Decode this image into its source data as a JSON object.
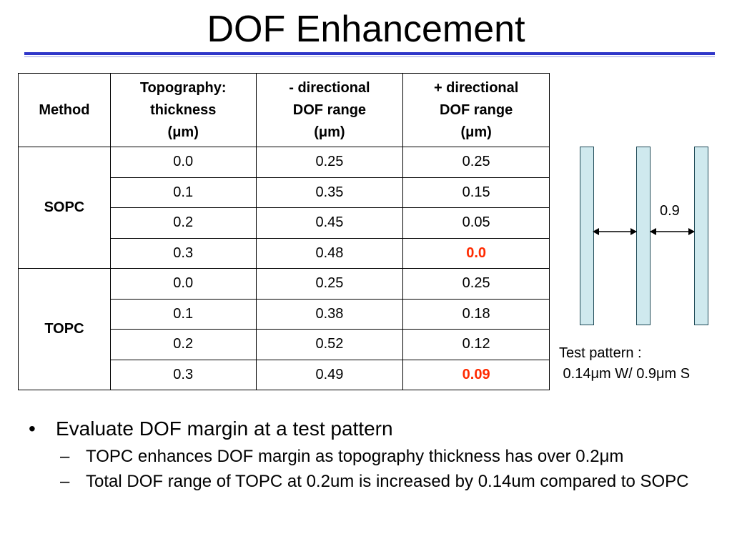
{
  "title": "DOF Enhancement",
  "table": {
    "headers": {
      "method": "Method",
      "thickness": [
        "Topography:",
        "thickness",
        "(μm)"
      ],
      "minus": [
        "- directional",
        "DOF range",
        "(μm)"
      ],
      "plus": [
        "+ directional",
        "DOF range",
        "(μm)"
      ]
    },
    "groups": [
      {
        "method": "SOPC",
        "rows": [
          {
            "thickness": "0.0",
            "minus": "0.25",
            "plus": "0.25"
          },
          {
            "thickness": "0.1",
            "minus": "0.35",
            "plus": "0.15"
          },
          {
            "thickness": "0.2",
            "minus": "0.45",
            "plus": "0.05"
          },
          {
            "thickness": "0.3",
            "minus": "0.48",
            "plus": "0.0"
          }
        ]
      },
      {
        "method": "TOPC",
        "rows": [
          {
            "thickness": "0.0",
            "minus": "0.25",
            "plus": "0.25"
          },
          {
            "thickness": "0.1",
            "minus": "0.38",
            "plus": "0.18"
          },
          {
            "thickness": "0.2",
            "minus": "0.52",
            "plus": "0.12"
          },
          {
            "thickness": "0.3",
            "minus": "0.49",
            "plus": "0.09"
          }
        ]
      }
    ],
    "highlight_color": "#ff2a00"
  },
  "pattern": {
    "gap_label": "0.9",
    "caption_line1": "Test pattern :",
    "caption_line2": " 0.14μm W/ 0.9μm S",
    "line_color": "#cfe9ee"
  },
  "bullets": {
    "main": "Evaluate DOF margin at a test pattern",
    "sub": [
      "TOPC enhances DOF margin as topography thickness has over 0.2μm",
      "Total DOF range of TOPC at 0.2um is increased by 0.14um compared to SOPC"
    ]
  },
  "accent_color": "#2f36c9"
}
